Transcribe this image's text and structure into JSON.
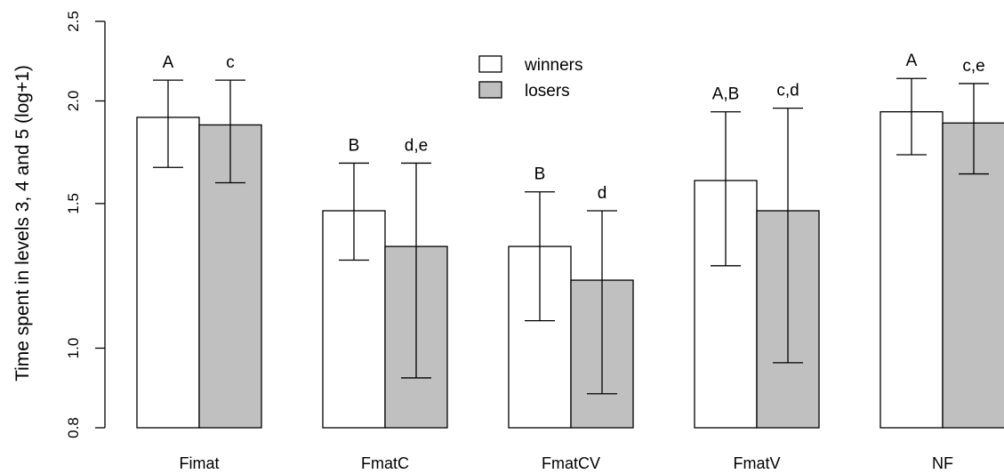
{
  "chart_data": {
    "type": "bar",
    "ylabel": "Time spent in levels 3, 4 and 5 (log+1)",
    "xlabel": "",
    "y_scale": "log",
    "ylim": [
      0.8,
      2.5
    ],
    "y_ticks": [
      0.8,
      1.0,
      1.5,
      2.0,
      2.5
    ],
    "y_tick_labels": [
      "0.8",
      "1.0",
      "1.5",
      "2.0",
      "2.5"
    ],
    "categories": [
      "Fimat",
      "FmatC",
      "FmatCV",
      "FmatV",
      "NF"
    ],
    "series": [
      {
        "name": "winners",
        "color": "#ffffff",
        "values": [
          1.91,
          1.47,
          1.33,
          1.6,
          1.94
        ],
        "err_low": [
          1.66,
          1.28,
          1.08,
          1.26,
          1.72
        ],
        "err_high": [
          2.12,
          1.68,
          1.55,
          1.94,
          2.13
        ],
        "labels": [
          "A",
          "B",
          "B",
          "A,B",
          "A"
        ]
      },
      {
        "name": "losers",
        "color": "#c0c0c0",
        "values": [
          1.87,
          1.33,
          1.21,
          1.47,
          1.88
        ],
        "err_low": [
          1.59,
          0.92,
          0.88,
          0.96,
          1.63
        ],
        "err_high": [
          2.12,
          1.68,
          1.47,
          1.96,
          2.1
        ],
        "labels": [
          "c",
          "d,e",
          "d",
          "c,d",
          "c,e"
        ]
      }
    ],
    "legend_position": "top-center",
    "grid": false
  }
}
